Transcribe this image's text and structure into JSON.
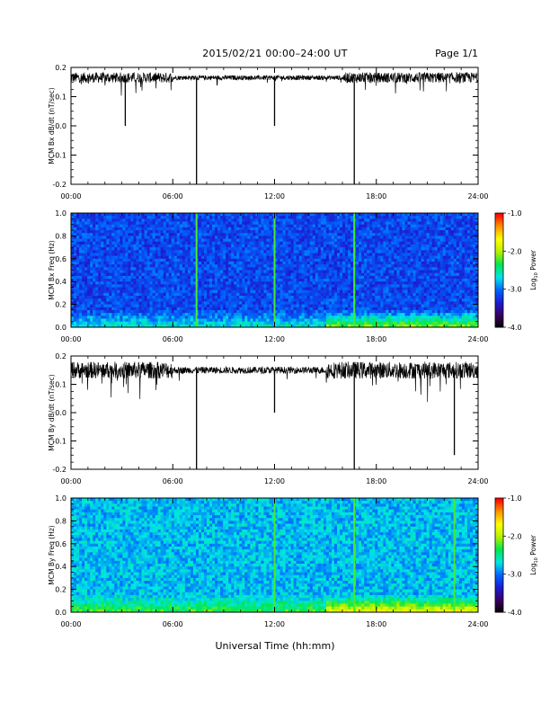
{
  "header": {
    "title": "2015/02/21  00:00–24:00 UT",
    "page": "Page 1/1"
  },
  "footer": {
    "xlabel": "Universal Time (hh:mm)"
  },
  "colorbar": {
    "label_prefix": "Log",
    "label_sub": "10",
    "label_suffix": " Power",
    "range": [
      -4.0,
      -1.0
    ],
    "ticks": [
      "-1.0",
      "-2.0",
      "-3.0",
      "-4.0"
    ],
    "ramp": [
      "#000000",
      "#3a0060",
      "#1c1cd0",
      "#0064ff",
      "#00e6e6",
      "#00e650",
      "#b4f000",
      "#ffff00",
      "#ff9600",
      "#ff0000"
    ]
  },
  "chart_data": [
    {
      "id": "bx-time",
      "type": "line",
      "ylabel": "MCM Bx dB/dt (nT/sec)",
      "xlim": [
        0,
        24
      ],
      "ylim": [
        -0.2,
        0.2
      ],
      "xticks": [
        "00:00",
        "06:00",
        "12:00",
        "18:00",
        "24:00"
      ],
      "yticks": [
        "0.2",
        "0.1",
        "0.0",
        "-0.1",
        "-0.2"
      ],
      "baseline": 0.165,
      "spikes": [
        {
          "x": 3.2,
          "y": 0.0
        },
        {
          "x": 7.4,
          "y": -0.2
        },
        {
          "x": 12.0,
          "y": 0.0
        },
        {
          "x": 16.7,
          "y": -0.2
        }
      ]
    },
    {
      "id": "bx-spec",
      "type": "heatmap",
      "ylabel": "MCM Bx Freq (Hz)",
      "xlim": [
        0,
        24
      ],
      "ylim": [
        0.0,
        1.0
      ],
      "xticks": [
        "00:00",
        "06:00",
        "12:00",
        "18:00",
        "24:00"
      ],
      "yticks": [
        "1.0",
        "0.8",
        "0.6",
        "0.4",
        "0.2",
        "0.0"
      ],
      "bright_times": [
        7.4,
        12.0,
        16.7
      ]
    },
    {
      "id": "by-time",
      "type": "line",
      "ylabel": "MCM By dB/dt (nT/sec)",
      "xlim": [
        0,
        24
      ],
      "ylim": [
        -0.2,
        0.2
      ],
      "xticks": [
        "00:00",
        "06:00",
        "12:00",
        "18:00",
        "24:00"
      ],
      "yticks": [
        "0.2",
        "0.1",
        "0.0",
        "-0.1",
        "-0.2"
      ],
      "baseline": 0.15,
      "spikes": [
        {
          "x": 7.4,
          "y": -0.2
        },
        {
          "x": 12.0,
          "y": 0.0
        },
        {
          "x": 16.7,
          "y": -0.2
        },
        {
          "x": 22.6,
          "y": -0.15
        }
      ]
    },
    {
      "id": "by-spec",
      "type": "heatmap",
      "ylabel": "MCM By Freq (Hz)",
      "xlim": [
        0,
        24
      ],
      "ylim": [
        0.0,
        1.0
      ],
      "xticks": [
        "00:00",
        "06:00",
        "12:00",
        "18:00",
        "24:00"
      ],
      "yticks": [
        "1.0",
        "0.8",
        "0.6",
        "0.4",
        "0.2",
        "0.0"
      ],
      "bright_times": [
        12.0,
        16.7,
        22.6
      ]
    }
  ]
}
